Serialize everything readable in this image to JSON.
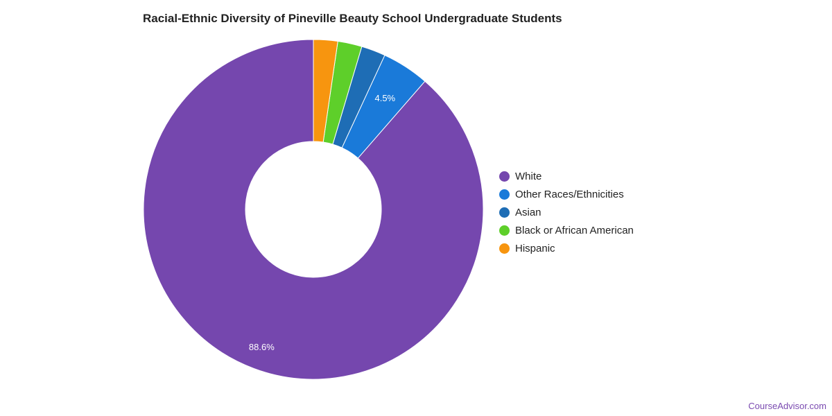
{
  "chart_data": {
    "type": "pie",
    "variant": "donut",
    "title": "Racial-Ethnic Diversity of Pineville Beauty School Undergraduate Students",
    "slices": [
      {
        "label": "White",
        "value": 88.6,
        "color": "#7547ae",
        "data_label": "88.6%"
      },
      {
        "label": "Other Races/Ethnicities",
        "value": 4.5,
        "color": "#1a7ad9",
        "data_label": "4.5%"
      },
      {
        "label": "Asian",
        "value": 2.3,
        "color": "#1e6db5",
        "data_label": ""
      },
      {
        "label": "Black or African American",
        "value": 2.3,
        "color": "#5ecf2a",
        "data_label": ""
      },
      {
        "label": "Hispanic",
        "value": 2.3,
        "color": "#f7950f",
        "data_label": ""
      }
    ],
    "legend_placement": "right"
  },
  "watermark": "CourseAdvisor.com"
}
